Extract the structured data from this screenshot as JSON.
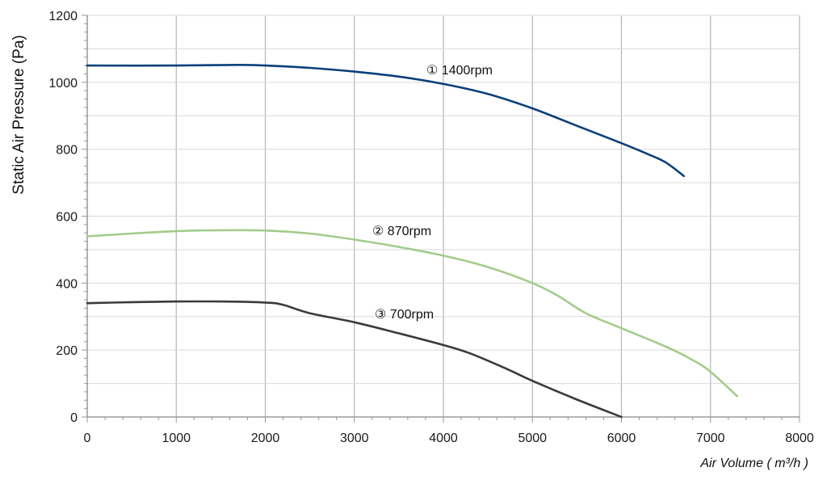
{
  "chart_data": {
    "type": "line",
    "title": "",
    "ylabel": "Static Air Pressure  (Pa)",
    "xlabel": "Air Volume ( m³/h )",
    "xlim": [
      0,
      8000
    ],
    "ylim": [
      0,
      1200
    ],
    "x_ticks": [
      "0",
      "1000",
      "2000",
      "3000",
      "4000",
      "5000",
      "6000",
      "7000",
      "8000"
    ],
    "y_ticks": [
      "0",
      "200",
      "400",
      "600",
      "800",
      "1000",
      "1200"
    ],
    "grid": true,
    "series": [
      {
        "name": "① 1400rpm",
        "color": "#0a3f7a",
        "x": [
          0,
          1000,
          1700,
          2000,
          2500,
          3000,
          3500,
          4000,
          4500,
          5000,
          5500,
          6000,
          6300,
          6500,
          6700
        ],
        "y": [
          1050,
          1050,
          1052,
          1050,
          1043,
          1032,
          1017,
          995,
          965,
          922,
          870,
          818,
          785,
          760,
          720
        ]
      },
      {
        "name": "② 870rpm",
        "color": "#a3cc8c",
        "x": [
          0,
          500,
          1000,
          1500,
          2000,
          2500,
          3000,
          3500,
          4000,
          4500,
          5000,
          5300,
          5600,
          6000,
          6500,
          6800,
          7000,
          7300
        ],
        "y": [
          540,
          548,
          555,
          558,
          557,
          548,
          530,
          508,
          482,
          448,
          400,
          360,
          310,
          265,
          210,
          170,
          135,
          62
        ]
      },
      {
        "name": "③ 700rpm",
        "color": "#3b3b3b",
        "x": [
          0,
          500,
          1000,
          1500,
          2000,
          2200,
          2500,
          3000,
          3500,
          4000,
          4300,
          4700,
          5000,
          5500,
          6000
        ],
        "y": [
          340,
          343,
          345,
          345,
          342,
          335,
          310,
          283,
          250,
          215,
          190,
          145,
          108,
          52,
          0
        ]
      }
    ]
  }
}
